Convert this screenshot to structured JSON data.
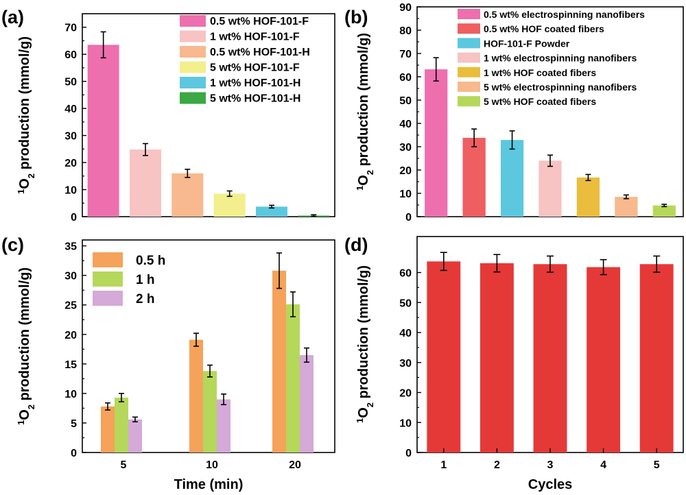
{
  "chart_data": [
    {
      "panel": "(a)",
      "type": "bar",
      "xlabel": "",
      "ylabel_pre": "1",
      "ylabel_main": "O",
      "ylabel_sub": "2",
      "ylabel_post": " production (mmol/g)",
      "ylim": [
        0,
        75
      ],
      "yticks": [
        "0",
        "10",
        "20",
        "30",
        "40",
        "50",
        "60",
        "70"
      ],
      "categories": [
        "0.5 wt% HOF-101-F",
        "1 wt% HOF-101-F",
        "0.5 wt% HOF-101-H",
        "5 wt% HOF-101-F",
        "1 wt% HOF-101-H",
        "5 wt% HOF-101-H"
      ],
      "values": [
        63.5,
        24.8,
        16.0,
        8.5,
        3.7,
        0.4
      ],
      "errors": [
        4.8,
        2.2,
        1.5,
        1.0,
        0.5,
        0.3
      ],
      "colors": [
        "#ee6fae",
        "#f7c3c3",
        "#f7b98d",
        "#f2ef8c",
        "#5cc8df",
        "#3aa843"
      ]
    },
    {
      "panel": "(b)",
      "type": "bar",
      "xlabel": "",
      "ylabel_pre": "1",
      "ylabel_main": "O",
      "ylabel_sub": "2",
      "ylabel_post": " production (mmol/g)",
      "ylim": [
        0,
        90
      ],
      "yticks": [
        "0",
        "10",
        "20",
        "30",
        "40",
        "50",
        "60",
        "70",
        "80",
        "90"
      ],
      "categories": [
        "0.5 wt% electrospinning nanofibers",
        "0.5 wt% HOF coated fibers",
        "HOF-101-F Powder",
        "1 wt% electrospinning nanofibers",
        "1 wt% HOF coated fibers",
        "5 wt% electrospinning nanofibers",
        "5 wt% HOF coated fibers"
      ],
      "values": [
        63.2,
        33.8,
        32.9,
        24.0,
        16.8,
        8.5,
        4.8
      ],
      "errors": [
        5.0,
        3.8,
        3.9,
        2.4,
        1.3,
        0.8,
        0.5
      ],
      "colors": [
        "#ee6fae",
        "#ef5e61",
        "#5cc8df",
        "#f7c3c3",
        "#ebbd3c",
        "#f7b98d",
        "#b5d85a"
      ]
    },
    {
      "panel": "(c)",
      "type": "bar",
      "xlabel": "Time (min)",
      "ylabel_pre": "1",
      "ylabel_main": "O",
      "ylabel_sub": "2",
      "ylabel_post": " production (mmol/g)",
      "ylim": [
        0,
        36
      ],
      "yticks": [
        "0",
        "5",
        "10",
        "15",
        "20",
        "25",
        "30",
        "35"
      ],
      "categories": [
        "5",
        "10",
        "20"
      ],
      "series": [
        {
          "name": "0.5 h",
          "color": "#f5a25a",
          "values": [
            7.8,
            19.1,
            30.8
          ],
          "errors": [
            0.6,
            1.1,
            3.0
          ]
        },
        {
          "name": "1 h",
          "color": "#b5d85a",
          "values": [
            9.3,
            13.8,
            25.1
          ],
          "errors": [
            0.7,
            1.0,
            2.1
          ]
        },
        {
          "name": "2 h",
          "color": "#d5a9d8",
          "values": [
            5.6,
            9.0,
            16.5
          ],
          "errors": [
            0.4,
            0.9,
            1.2
          ]
        }
      ]
    },
    {
      "panel": "(d)",
      "type": "bar",
      "xlabel": "Cycles",
      "ylabel_pre": "1",
      "ylabel_main": "O",
      "ylabel_sub": "2",
      "ylabel_post": " production (mmol/g)",
      "ylim": [
        0,
        72
      ],
      "yticks": [
        "0",
        "10",
        "20",
        "30",
        "40",
        "50",
        "60"
      ],
      "categories": [
        "1",
        "2",
        "3",
        "4",
        "5"
      ],
      "values": [
        63.7,
        63.1,
        62.8,
        61.8,
        62.8
      ],
      "errors": [
        3.0,
        2.9,
        2.7,
        2.5,
        2.7
      ],
      "colors": [
        "#e53938",
        "#e53938",
        "#e53938",
        "#e53938",
        "#e53938"
      ]
    }
  ]
}
